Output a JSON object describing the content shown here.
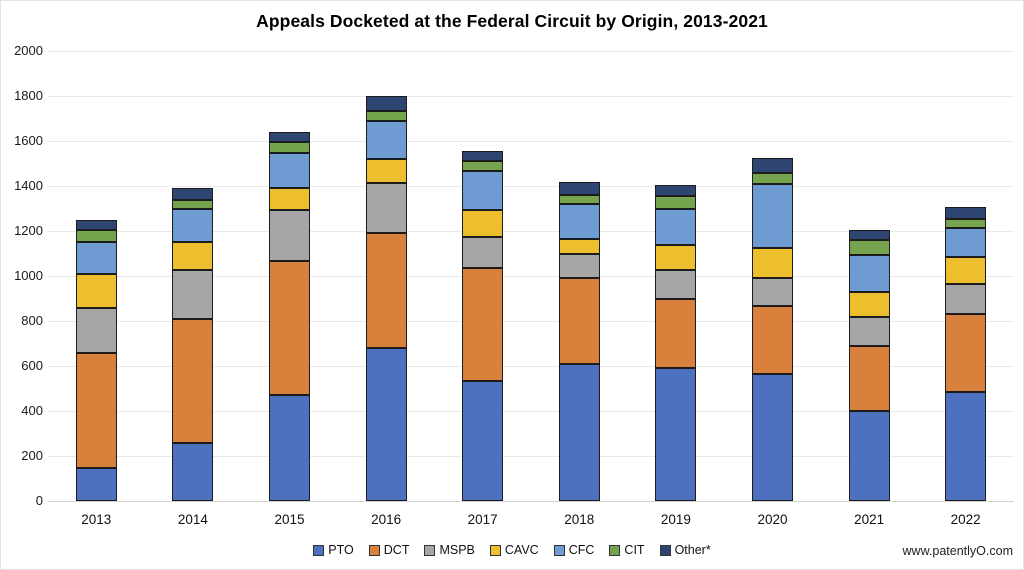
{
  "title": "Appeals Docketed at the Federal Circuit by Origin, 2013-2021",
  "watermark": "www.patentlyO.com",
  "chart_data": {
    "type": "bar",
    "stacked": true,
    "title": "Appeals Docketed at the Federal Circuit by Origin, 2013-2021",
    "categories": [
      "2013",
      "2014",
      "2015",
      "2016",
      "2017",
      "2018",
      "2019",
      "2020",
      "2021",
      "2022"
    ],
    "series": [
      {
        "name": "PTO",
        "color": "#4d71be",
        "values": [
          145,
          260,
          470,
          680,
          535,
          610,
          590,
          565,
          400,
          485
        ]
      },
      {
        "name": "DCT",
        "color": "#d9803c",
        "values": [
          515,
          550,
          595,
          510,
          500,
          380,
          310,
          300,
          290,
          345
        ]
      },
      {
        "name": "MSPB",
        "color": "#a6a6a6",
        "values": [
          200,
          215,
          230,
          225,
          140,
          110,
          125,
          125,
          130,
          135
        ]
      },
      {
        "name": "CAVC",
        "color": "#edbe2d",
        "values": [
          150,
          125,
          95,
          105,
          120,
          65,
          115,
          135,
          110,
          120
        ]
      },
      {
        "name": "CFC",
        "color": "#6f9bd3",
        "values": [
          140,
          150,
          155,
          170,
          170,
          155,
          160,
          285,
          165,
          130
        ]
      },
      {
        "name": "CIT",
        "color": "#75a34e",
        "values": [
          55,
          40,
          50,
          45,
          45,
          40,
          55,
          50,
          65,
          40
        ]
      },
      {
        "name": "Other*",
        "color": "#2f4571",
        "values": [
          45,
          50,
          45,
          65,
          45,
          60,
          50,
          65,
          45,
          50
        ]
      }
    ],
    "totals": [
      1250,
      1390,
      1640,
      1800,
      1555,
      1420,
      1405,
      1525,
      1205,
      1305
    ],
    "ylim": [
      0,
      2000
    ],
    "ytick_step": 200,
    "grid": true,
    "legend_position": "bottom",
    "xlabel": "",
    "ylabel": ""
  }
}
